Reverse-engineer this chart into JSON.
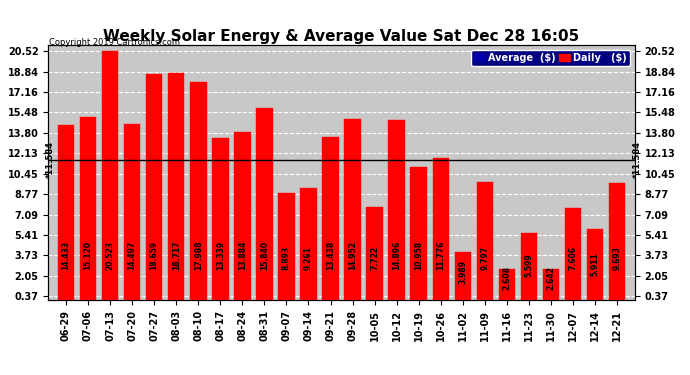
{
  "title": "Weekly Solar Energy & Average Value Sat Dec 28 16:05",
  "copyright": "Copyright 2019 Cartronics.com",
  "categories": [
    "06-29",
    "07-06",
    "07-13",
    "07-20",
    "07-27",
    "08-03",
    "08-10",
    "08-17",
    "08-24",
    "08-31",
    "09-07",
    "09-14",
    "09-21",
    "09-28",
    "10-05",
    "10-12",
    "10-19",
    "10-26",
    "11-02",
    "11-09",
    "11-16",
    "11-23",
    "11-30",
    "12-07",
    "12-14",
    "12-21"
  ],
  "values": [
    14.433,
    15.12,
    20.523,
    14.497,
    18.659,
    18.717,
    17.988,
    13.339,
    13.884,
    15.84,
    8.893,
    9.261,
    13.438,
    14.952,
    7.722,
    14.896,
    10.958,
    11.776,
    3.989,
    9.797,
    2.608,
    5.599,
    2.642,
    7.606,
    5.911,
    9.693
  ],
  "average_value": 11.584,
  "ylim_min": 0.37,
  "ylim_max": 20.52,
  "yticks": [
    0.37,
    2.05,
    3.73,
    5.41,
    7.09,
    8.77,
    10.45,
    12.13,
    13.8,
    15.48,
    17.16,
    18.84,
    20.52
  ],
  "bar_color": "#ff0000",
  "average_line_color": "#000000",
  "grid_color": "#ffffff",
  "background_color": "#ffffff",
  "plot_bg_color": "#c8c8c8",
  "title_fontsize": 11,
  "tick_fontsize": 7,
  "value_label_fontsize": 5.5,
  "legend_avg_color": "#0000aa",
  "legend_daily_color": "#ff0000",
  "avg_label": "*11.584",
  "legend_bg_color": "#000080"
}
